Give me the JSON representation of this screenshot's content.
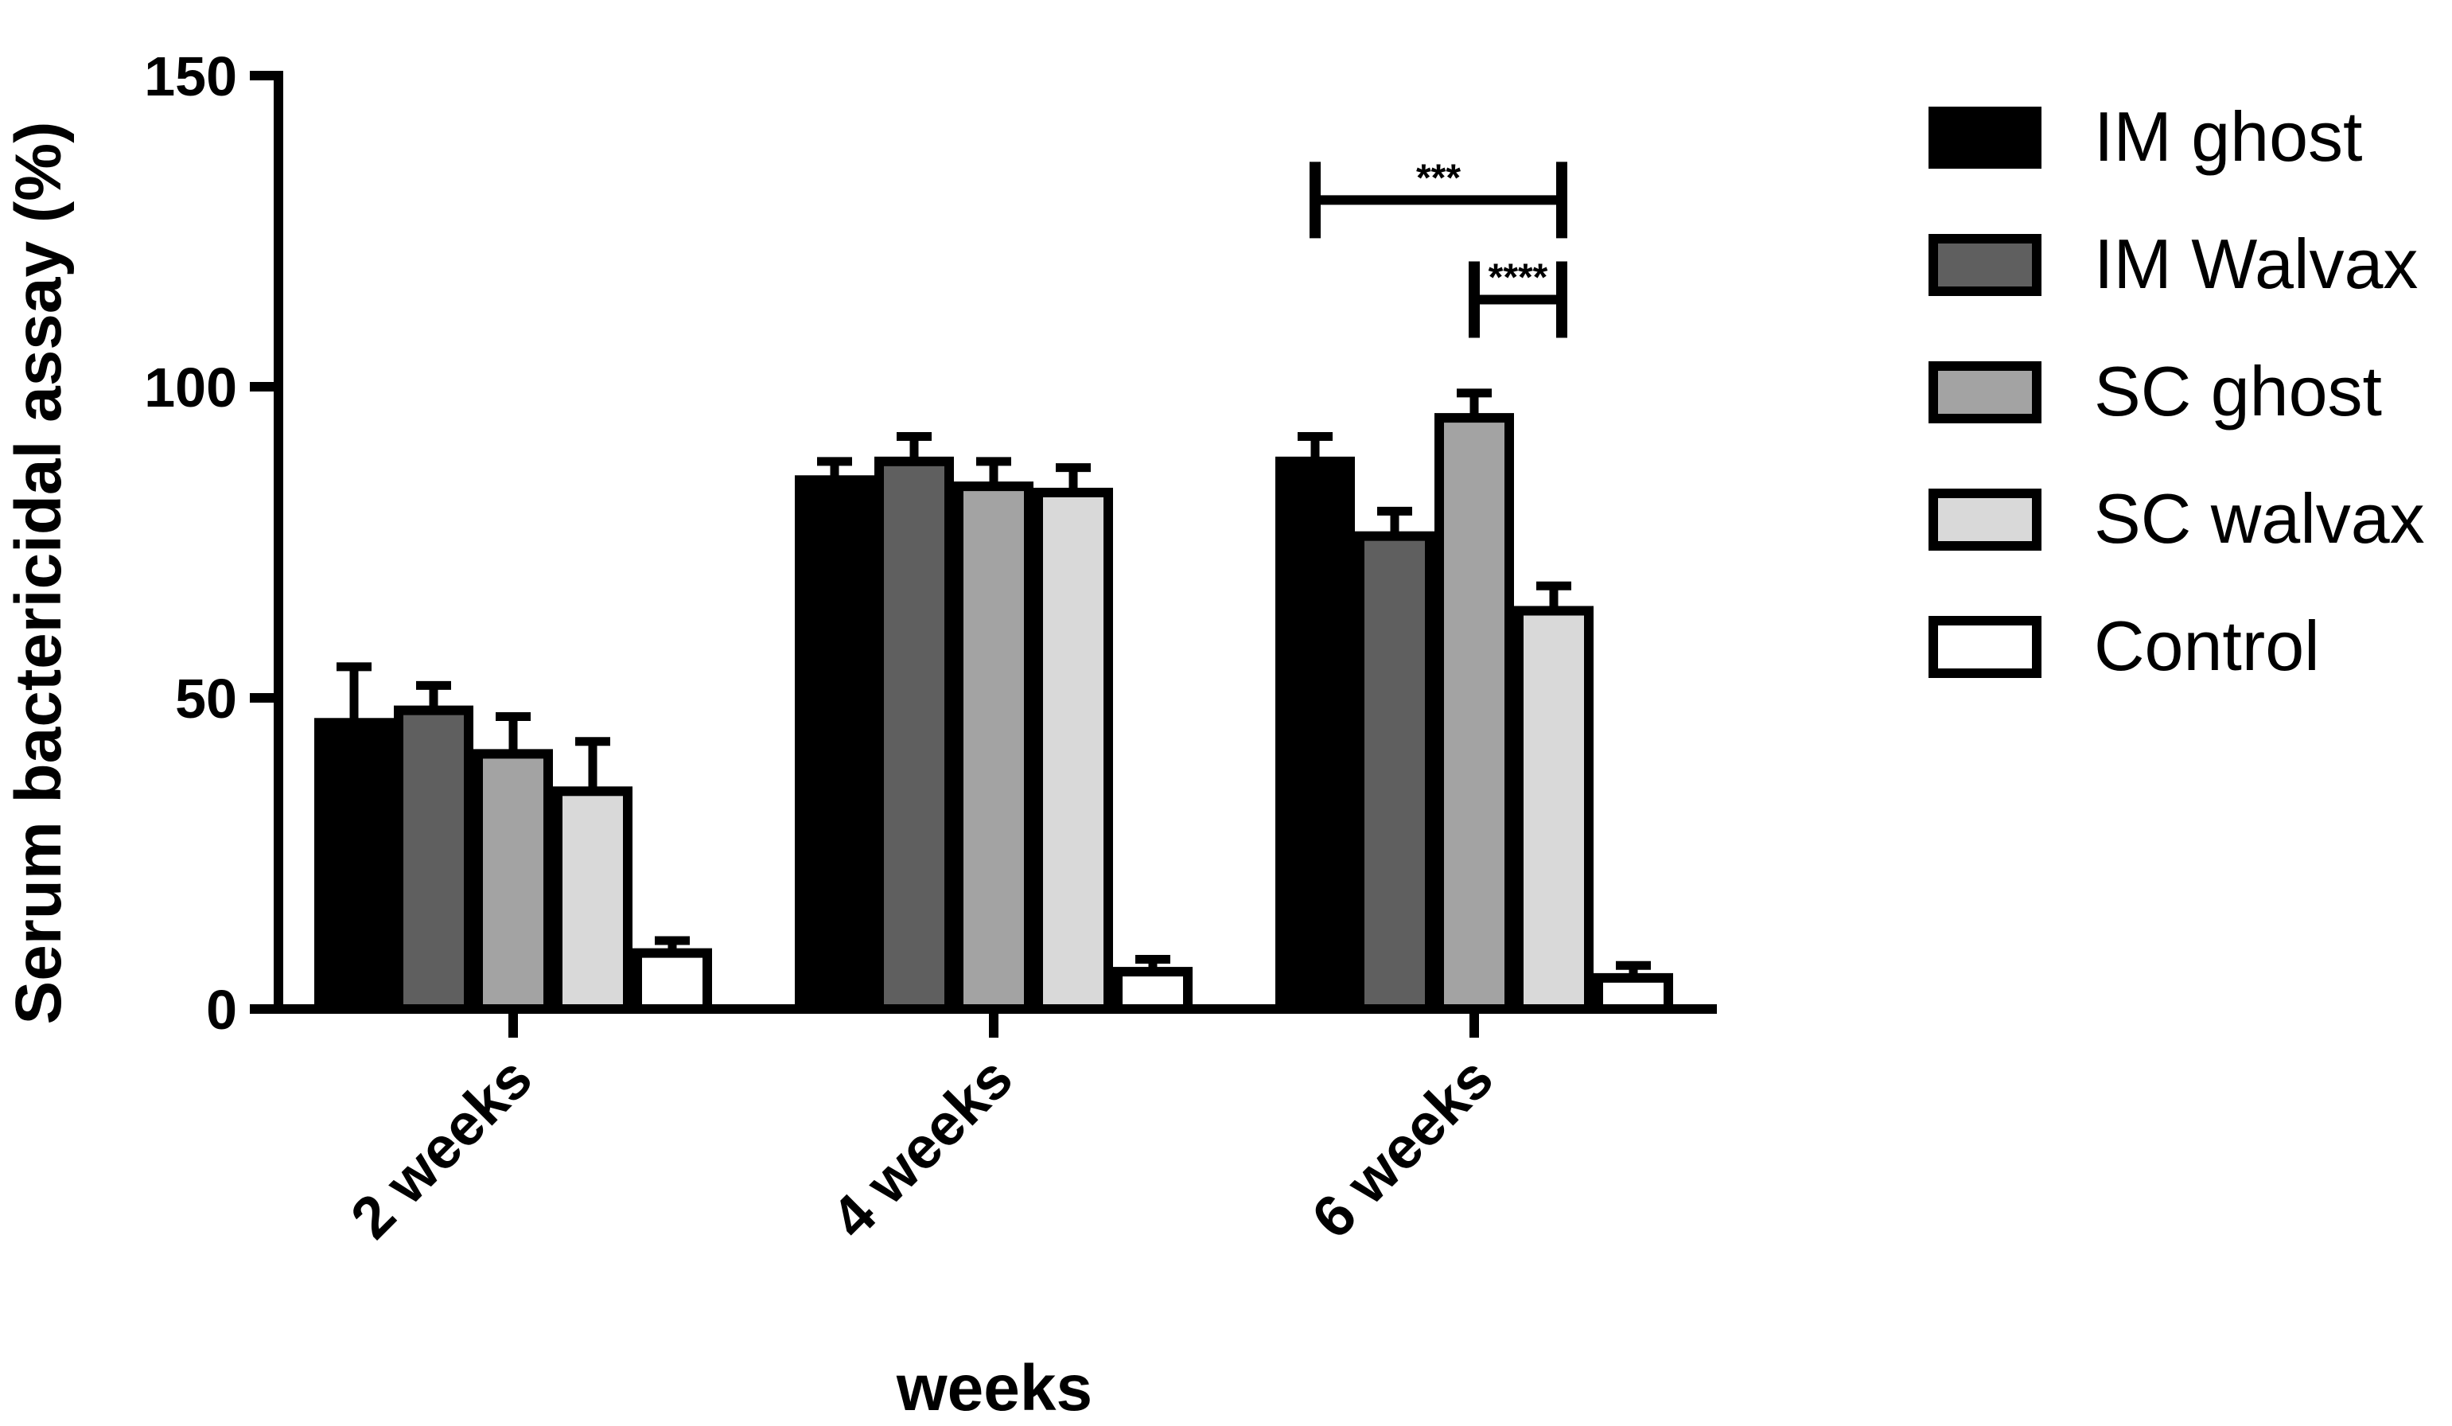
{
  "chart_data": {
    "type": "bar",
    "title": "",
    "xlabel": "weeks",
    "ylabel": "Serum bactericidal assay (%)",
    "ylim": [
      0,
      150
    ],
    "yticks": [
      0,
      50,
      100,
      150
    ],
    "ytick_labels": [
      "0",
      "50",
      "100",
      "150"
    ],
    "categories": [
      "2 weeks",
      "4 weeks",
      "6 weeks"
    ],
    "series": [
      {
        "name": "IM ghost",
        "color": "#000000",
        "values": [
          46,
          85,
          88
        ],
        "errors": [
          9,
          3,
          4
        ]
      },
      {
        "name": "IM Walvax",
        "color": "#5f5f5f",
        "values": [
          48,
          88,
          76
        ],
        "errors": [
          4,
          4,
          4
        ]
      },
      {
        "name": "SC ghost",
        "color": "#a3a3a3",
        "values": [
          41,
          84,
          95
        ],
        "errors": [
          6,
          4,
          4
        ]
      },
      {
        "name": "SC walvax",
        "color": "#d9d9d9",
        "values": [
          35,
          83,
          64
        ],
        "errors": [
          8,
          4,
          4
        ]
      },
      {
        "name": "Control",
        "color": "#ffffff",
        "values": [
          9,
          6,
          5
        ],
        "errors": [
          2,
          2,
          2
        ]
      }
    ],
    "significance": [
      {
        "label": "***",
        "category": "6 weeks",
        "from_series": "IM ghost",
        "to_series": "SC walvax",
        "y": 130
      },
      {
        "label": "****",
        "category": "6 weeks",
        "from_series": "SC ghost",
        "to_series": "SC walvax",
        "y": 114
      }
    ],
    "legend_position": "right",
    "grid": false
  }
}
